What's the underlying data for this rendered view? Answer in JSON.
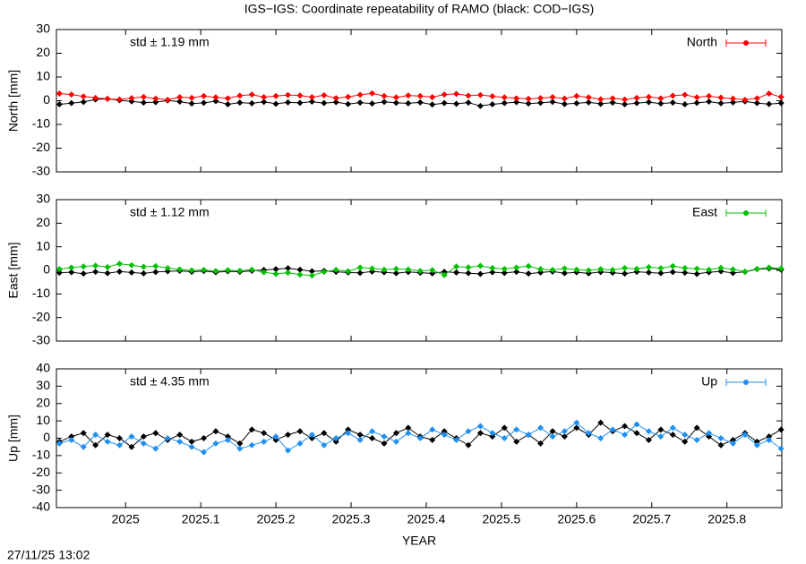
{
  "timestamp": "27/11/25 13:02",
  "chart_data": [
    {
      "type": "line",
      "title": "IGS−IGS: Coordinate repeatability of RAMO (black: COD−IGS)",
      "ylabel": "North [mm]",
      "annotation": "std ± 1.19 mm",
      "legend": "top-right",
      "x": [
        2024.912,
        2024.928,
        2024.944,
        2024.96,
        2024.976,
        2024.992,
        2025.008,
        2025.024,
        2025.04,
        2025.056,
        2025.072,
        2025.088,
        2025.104,
        2025.12,
        2025.136,
        2025.152,
        2025.168,
        2025.184,
        2025.2,
        2025.216,
        2025.232,
        2025.248,
        2025.264,
        2025.28,
        2025.296,
        2025.312,
        2025.328,
        2025.344,
        2025.36,
        2025.376,
        2025.392,
        2025.408,
        2025.424,
        2025.44,
        2025.456,
        2025.472,
        2025.488,
        2025.504,
        2025.52,
        2025.536,
        2025.552,
        2025.568,
        2025.584,
        2025.6,
        2025.616,
        2025.632,
        2025.648,
        2025.664,
        2025.68,
        2025.696,
        2025.712,
        2025.728,
        2025.744,
        2025.76,
        2025.776,
        2025.792,
        2025.808,
        2025.824,
        2025.84,
        2025.856,
        2025.872
      ],
      "xlim": [
        2024.908,
        2025.873
      ],
      "ylim": [
        -30,
        30
      ],
      "yticks": [
        -30,
        -20,
        -10,
        0,
        10,
        20,
        30
      ],
      "series": [
        {
          "color": "#000000",
          "values": [
            -1.5,
            -1.0,
            -0.5,
            0.5,
            0.8,
            0.2,
            -0.3,
            -0.8,
            -0.6,
            0.1,
            -0.4,
            -1.2,
            -0.9,
            -0.2,
            -1.5,
            -0.8,
            -1.1,
            -0.5,
            -1.3,
            -0.7,
            -0.9,
            -0.4,
            -1.0,
            -0.6,
            -1.4,
            -0.8,
            -1.2,
            -0.5,
            -0.9,
            -1.1,
            -0.7,
            -1.6,
            -1.0,
            -1.3,
            -0.8,
            -2.2,
            -1.5,
            -1.0,
            -0.6,
            -1.2,
            -0.9,
            -0.5,
            -1.4,
            -1.1,
            -0.7,
            -1.3,
            -0.8,
            -1.5,
            -1.0,
            -0.6,
            -1.2,
            -0.8,
            -1.5,
            -0.9,
            -0.4,
            -1.1,
            -0.7,
            -0.3,
            -1.0,
            -1.4,
            -1.0
          ]
        },
        {
          "name": "North",
          "color": "#ff0000",
          "values": [
            3,
            2.6,
            1.8,
            1.2,
            0.8,
            0.5,
            1.1,
            1.6,
            0.9,
            0.4,
            1.5,
            1.2,
            2.0,
            1.4,
            1.0,
            2.1,
            2.6,
            1.5,
            2.0,
            2.4,
            2.2,
            1.5,
            2.3,
            1.1,
            1.6,
            2.5,
            3.1,
            2.0,
            1.4,
            2.2,
            2.0,
            1.5,
            2.6,
            2.9,
            2.1,
            2.4,
            1.9,
            1.4,
            1.0,
            0.8,
            1.1,
            1.5,
            0.9,
            2.0,
            1.4,
            0.6,
            1.0,
            0.5,
            1.2,
            1.6,
            1.0,
            2.1,
            2.5,
            1.4,
            2.0,
            1.3,
            0.9,
            0.4,
            1.0,
            3.0,
            1.6
          ]
        }
      ]
    },
    {
      "type": "line",
      "ylabel": "East [mm]",
      "annotation": "std ± 1.12 mm",
      "legend": "top-right",
      "x": [
        2024.912,
        2024.928,
        2024.944,
        2024.96,
        2024.976,
        2024.992,
        2025.008,
        2025.024,
        2025.04,
        2025.056,
        2025.072,
        2025.088,
        2025.104,
        2025.12,
        2025.136,
        2025.152,
        2025.168,
        2025.184,
        2025.2,
        2025.216,
        2025.232,
        2025.248,
        2025.264,
        2025.28,
        2025.296,
        2025.312,
        2025.328,
        2025.344,
        2025.36,
        2025.376,
        2025.392,
        2025.408,
        2025.424,
        2025.44,
        2025.456,
        2025.472,
        2025.488,
        2025.504,
        2025.52,
        2025.536,
        2025.552,
        2025.568,
        2025.584,
        2025.6,
        2025.616,
        2025.632,
        2025.648,
        2025.664,
        2025.68,
        2025.696,
        2025.712,
        2025.728,
        2025.744,
        2025.76,
        2025.776,
        2025.792,
        2025.808,
        2025.824,
        2025.84,
        2025.856,
        2025.872
      ],
      "xlim": [
        2024.908,
        2025.873
      ],
      "ylim": [
        -30,
        30
      ],
      "yticks": [
        -30,
        -20,
        -10,
        0,
        10,
        20,
        30
      ],
      "series": [
        {
          "color": "#000000",
          "values": [
            -1.0,
            -0.8,
            -1.4,
            -0.6,
            -1.2,
            -0.5,
            -0.9,
            -1.3,
            -0.7,
            -0.4,
            -0.2,
            -0.6,
            -0.3,
            -0.8,
            -0.4,
            -0.6,
            -0.2,
            0.2,
            0.5,
            0.9,
            0.3,
            -0.4,
            -0.2,
            -0.6,
            -0.9,
            -1.1,
            -0.5,
            -0.8,
            -1.2,
            -0.7,
            -1.0,
            -1.3,
            -0.6,
            -0.9,
            -1.2,
            -1.5,
            -0.8,
            -1.1,
            -0.6,
            -1.4,
            -0.9,
            -0.5,
            -1.2,
            -0.8,
            -1.3,
            -0.7,
            -1.0,
            -1.4,
            -0.6,
            -0.9,
            -1.2,
            -0.7,
            -1.0,
            -1.5,
            -0.8,
            -0.4,
            -1.1,
            -0.6,
            0.5,
            0.8,
            0.3
          ]
        },
        {
          "name": "East",
          "color": "#00c000",
          "values": [
            0.5,
            1.2,
            1.6,
            2.0,
            1.4,
            2.8,
            2.2,
            1.5,
            1.8,
            1.0,
            0.4,
            0.0,
            0.2,
            -0.3,
            0.1,
            -0.2,
            0.3,
            -0.8,
            -1.5,
            -1.0,
            -1.8,
            -2.2,
            -0.6,
            0.2,
            -0.4,
            1.2,
            0.8,
            0.3,
            0.6,
            0.4,
            -0.3,
            0.1,
            -2.0,
            1.6,
            1.3,
            1.9,
            1.0,
            0.6,
            1.2,
            1.8,
            0.5,
            0.2,
            0.8,
            0.3,
            0.0,
            0.5,
            0.2,
            1.0,
            0.6,
            1.4,
            0.9,
            1.8,
            1.0,
            0.7,
            0.3,
            1.1,
            0.4,
            -0.5,
            0.6,
            1.2,
            0.8
          ]
        }
      ]
    },
    {
      "type": "line",
      "ylabel": "Up [mm]",
      "xlabel": "YEAR",
      "annotation": "std ± 4.35 mm",
      "legend": "top-right",
      "x": [
        2024.912,
        2024.928,
        2024.944,
        2024.96,
        2024.976,
        2024.992,
        2025.008,
        2025.024,
        2025.04,
        2025.056,
        2025.072,
        2025.088,
        2025.104,
        2025.12,
        2025.136,
        2025.152,
        2025.168,
        2025.184,
        2025.2,
        2025.216,
        2025.232,
        2025.248,
        2025.264,
        2025.28,
        2025.296,
        2025.312,
        2025.328,
        2025.344,
        2025.36,
        2025.376,
        2025.392,
        2025.408,
        2025.424,
        2025.44,
        2025.456,
        2025.472,
        2025.488,
        2025.504,
        2025.52,
        2025.536,
        2025.552,
        2025.568,
        2025.584,
        2025.6,
        2025.616,
        2025.632,
        2025.648,
        2025.664,
        2025.68,
        2025.696,
        2025.712,
        2025.728,
        2025.744,
        2025.76,
        2025.776,
        2025.792,
        2025.808,
        2025.824,
        2025.84,
        2025.856,
        2025.872
      ],
      "xlim": [
        2024.908,
        2025.873
      ],
      "xticks": [
        2025,
        2025.1,
        2025.2,
        2025.3,
        2025.4,
        2025.5,
        2025.6,
        2025.7,
        2025.8
      ],
      "ylim": [
        -40,
        40
      ],
      "yticks": [
        -40,
        -30,
        -20,
        -10,
        0,
        10,
        20,
        30,
        40
      ],
      "series": [
        {
          "color": "#000000",
          "values": [
            -2,
            1,
            3,
            -4,
            2,
            0,
            -5,
            1,
            3,
            -1,
            2,
            -2,
            0,
            4,
            1,
            -3,
            5,
            3,
            -1,
            2,
            4,
            0,
            3,
            -2,
            5,
            2,
            0,
            -3,
            3,
            6,
            1,
            -1,
            4,
            0,
            -4,
            3,
            1,
            6,
            -2,
            2,
            -3,
            4,
            1,
            6,
            2,
            9,
            4,
            7,
            3,
            -1,
            5,
            2,
            -2,
            6,
            1,
            -4,
            -1,
            3,
            -2,
            1,
            5
          ]
        },
        {
          "name": "Up",
          "color": "#2090f0",
          "values": [
            -3,
            -1,
            -5,
            2,
            -2,
            -4,
            1,
            -3,
            -6,
            0,
            -2,
            -5,
            -8,
            -3,
            -1,
            -6,
            -4,
            -2,
            1,
            -7,
            -3,
            2,
            -4,
            0,
            3,
            -1,
            4,
            1,
            -2,
            3,
            0,
            5,
            2,
            -1,
            4,
            7,
            3,
            0,
            5,
            2,
            6,
            1,
            4,
            9,
            3,
            0,
            5,
            2,
            8,
            4,
            1,
            6,
            2,
            -1,
            3,
            0,
            -3,
            2,
            -4,
            -1,
            -6
          ]
        }
      ]
    }
  ]
}
